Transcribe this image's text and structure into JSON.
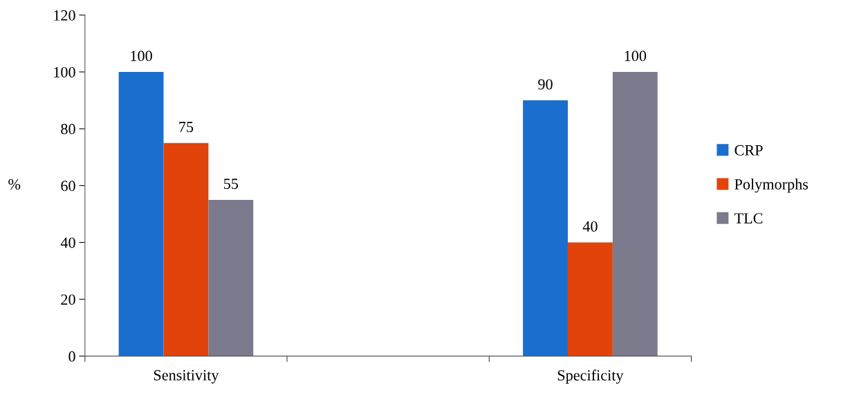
{
  "chart_data": {
    "type": "bar",
    "ylabel": "%",
    "categories": [
      "Sensitivity",
      null,
      "Specificity"
    ],
    "series": [
      {
        "name": "CRP",
        "color": "#1a6fce",
        "values": [
          100,
          null,
          90
        ]
      },
      {
        "name": "Polymorphs",
        "color": "#e2430a",
        "values": [
          75,
          null,
          40
        ]
      },
      {
        "name": "TLC",
        "color": "#7b7b8d",
        "values": [
          55,
          null,
          100
        ]
      }
    ],
    "ylim": [
      0,
      120
    ],
    "yticks": [
      0,
      20,
      40,
      60,
      80,
      100,
      120
    ],
    "data_labels": true,
    "grid": false,
    "legend": "right"
  }
}
